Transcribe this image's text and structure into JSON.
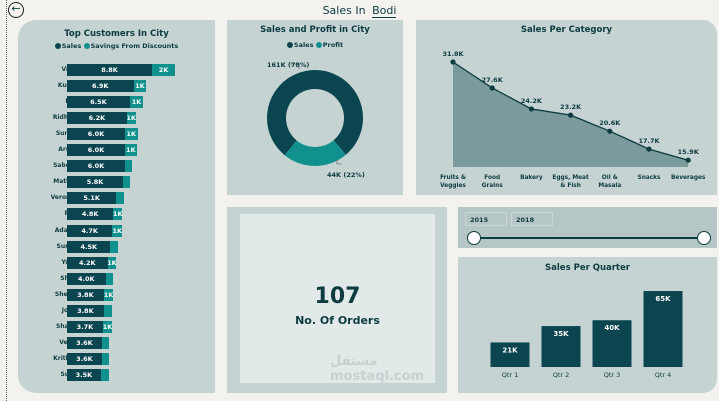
{
  "header": {
    "title_prefix": "Sales In",
    "city": "Bodi"
  },
  "customers": {
    "title": "Top Customers In City",
    "legend": [
      "Sales",
      "Savings From Discounts"
    ],
    "rows": [
      {
        "name": "Vince",
        "sales": 8.8,
        "sales_label": "8.8K",
        "savings": 2.4,
        "savings_label": "2K"
      },
      {
        "name": "Kumar",
        "sales": 6.9,
        "sales_label": "6.9K",
        "savings": 1.3,
        "savings_label": "1K"
      },
      {
        "name": "Ravi",
        "sales": 6.5,
        "sales_label": "6.5K",
        "savings": 1.4,
        "savings_label": "1K"
      },
      {
        "name": "Ridhesh",
        "sales": 6.2,
        "sales_label": "6.2K",
        "savings": 0.9,
        "savings_label": "1K"
      },
      {
        "name": "Sundar",
        "sales": 6.0,
        "sales_label": "6.0K",
        "savings": 1.3,
        "savings_label": "1K"
      },
      {
        "name": "Arutra",
        "sales": 6.0,
        "sales_label": "6.0K",
        "savings": 1.2,
        "savings_label": "1K"
      },
      {
        "name": "Sabeela",
        "sales": 6.0,
        "sales_label": "6.0K",
        "savings": 0.7,
        "savings_label": ""
      },
      {
        "name": "Mathew",
        "sales": 5.8,
        "sales_label": "5.8K",
        "savings": 0.7,
        "savings_label": ""
      },
      {
        "name": "Veronica",
        "sales": 5.1,
        "sales_label": "5.1K",
        "savings": 0.8,
        "savings_label": ""
      },
      {
        "name": "Peer",
        "sales": 4.8,
        "sales_label": "4.8K",
        "savings": 0.9,
        "savings_label": "1K"
      },
      {
        "name": "Adavan",
        "sales": 4.7,
        "sales_label": "4.7K",
        "savings": 1.0,
        "savings_label": "1K"
      },
      {
        "name": "Suresh",
        "sales": 4.5,
        "sales_label": "4.5K",
        "savings": 0.8,
        "savings_label": ""
      },
      {
        "name": "Yusuf",
        "sales": 4.2,
        "sales_label": "4.2K",
        "savings": 0.9,
        "savings_label": "1K"
      },
      {
        "name": "Shree",
        "sales": 4.0,
        "sales_label": "4.0K",
        "savings": 0.8,
        "savings_label": ""
      },
      {
        "name": "Sheeba",
        "sales": 3.8,
        "sales_label": "3.8K",
        "savings": 1.0,
        "savings_label": "1K"
      },
      {
        "name": "Jonas",
        "sales": 3.8,
        "sales_label": "3.8K",
        "savings": 0.9,
        "savings_label": ""
      },
      {
        "name": "Sharon",
        "sales": 3.7,
        "sales_label": "3.7K",
        "savings": 1.0,
        "savings_label": "1K"
      },
      {
        "name": "Veena",
        "sales": 3.6,
        "sales_label": "3.6K",
        "savings": 0.8,
        "savings_label": ""
      },
      {
        "name": "Krithika",
        "sales": 3.6,
        "sales_label": "3.6K",
        "savings": 0.7,
        "savings_label": ""
      },
      {
        "name": "Surya",
        "sales": 3.5,
        "sales_label": "3.5K",
        "savings": 0.8,
        "savings_label": ""
      }
    ]
  },
  "donut": {
    "title": "Sales and Profit in City",
    "legend": [
      "Sales",
      "Profit"
    ],
    "sales_pct": 78,
    "profit_pct": 22,
    "sales_label": "161K (78%)",
    "profit_label": "44K (22%)"
  },
  "chart_data": [
    {
      "type": "area",
      "title": "Sales Per Category",
      "categories": [
        "Fruits & Veggies",
        "Food Grains",
        "Bakery",
        "Eggs, Meat & Fish",
        "Oil & Masala",
        "Snacks",
        "Beverages"
      ],
      "values": [
        31.8,
        27.6,
        24.2,
        23.2,
        20.6,
        17.7,
        15.9
      ],
      "labels": [
        "31.8K",
        "27.6K",
        "24.2K",
        "23.2K",
        "20.6K",
        "17.7K",
        "15.9K"
      ],
      "ylim": [
        14.8,
        31.8
      ]
    },
    {
      "type": "bar",
      "title": "Sales Per Quarter",
      "categories": [
        "Qtr 1",
        "Qtr 2",
        "Qtr 3",
        "Qtr 4"
      ],
      "values": [
        21,
        35,
        40,
        65
      ],
      "labels": [
        "21K",
        "35K",
        "40K",
        "65K"
      ],
      "ylim": [
        0,
        65
      ]
    }
  ],
  "kpi": {
    "value": "107",
    "label": "No. Of Orders"
  },
  "slider": {
    "from": "2015",
    "to": "2018"
  },
  "watermark": "مستقل mostaql.com",
  "colors": {
    "sales": "#0b4650",
    "savings": "#11918e",
    "panel": "#c5d3d3"
  }
}
